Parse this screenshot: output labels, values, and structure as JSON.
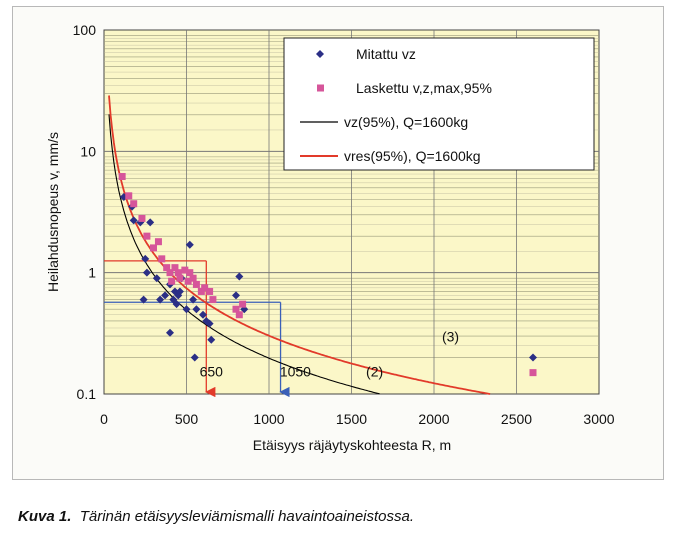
{
  "chart_data": {
    "type": "scatter",
    "ylabel": "Heilahdusnopeus v, mm/s",
    "xlabel": "Etäisyys räjäytyskohteesta R, m",
    "xlim": [
      0,
      3000
    ],
    "ylim": [
      0.1,
      100
    ],
    "y_scale": "log",
    "x_ticks": [
      0,
      500,
      1000,
      1500,
      2000,
      2500,
      3000
    ],
    "y_ticks": [
      0.1,
      1,
      10,
      100
    ],
    "grid": true,
    "legend_position": "top-right",
    "series": [
      {
        "name": "Mitattu vz",
        "kind": "scatter",
        "marker": "diamond",
        "color": "#2b2f86",
        "points": [
          [
            120,
            4.2
          ],
          [
            170,
            3.5
          ],
          [
            180,
            2.7
          ],
          [
            220,
            2.6
          ],
          [
            240,
            0.6
          ],
          [
            250,
            1.3
          ],
          [
            260,
            1.0
          ],
          [
            280,
            2.6
          ],
          [
            320,
            0.9
          ],
          [
            340,
            0.6
          ],
          [
            370,
            0.65
          ],
          [
            400,
            0.8
          ],
          [
            400,
            0.32
          ],
          [
            420,
            0.6
          ],
          [
            430,
            0.7
          ],
          [
            440,
            0.55
          ],
          [
            450,
            0.65
          ],
          [
            460,
            0.7
          ],
          [
            470,
            0.9
          ],
          [
            500,
            0.5
          ],
          [
            520,
            1.7
          ],
          [
            540,
            0.6
          ],
          [
            550,
            0.2
          ],
          [
            560,
            0.5
          ],
          [
            600,
            0.45
          ],
          [
            620,
            0.4
          ],
          [
            640,
            0.38
          ],
          [
            650,
            0.28
          ],
          [
            800,
            0.65
          ],
          [
            820,
            0.93
          ],
          [
            850,
            0.5
          ],
          [
            2600,
            0.2
          ]
        ]
      },
      {
        "name": "Laskettu v,z,max,95%",
        "kind": "scatter",
        "marker": "square",
        "color": "#d6559a",
        "points": [
          [
            110,
            6.2
          ],
          [
            150,
            4.3
          ],
          [
            180,
            3.7
          ],
          [
            230,
            2.8
          ],
          [
            260,
            2.0
          ],
          [
            300,
            1.6
          ],
          [
            330,
            1.8
          ],
          [
            350,
            1.3
          ],
          [
            380,
            1.1
          ],
          [
            400,
            1.0
          ],
          [
            410,
            0.85
          ],
          [
            430,
            1.1
          ],
          [
            450,
            1.0
          ],
          [
            460,
            0.9
          ],
          [
            490,
            1.05
          ],
          [
            510,
            0.85
          ],
          [
            520,
            1.0
          ],
          [
            540,
            0.9
          ],
          [
            560,
            0.8
          ],
          [
            590,
            0.7
          ],
          [
            610,
            0.75
          ],
          [
            640,
            0.7
          ],
          [
            660,
            0.6
          ],
          [
            800,
            0.5
          ],
          [
            820,
            0.45
          ],
          [
            840,
            0.55
          ],
          [
            2600,
            0.15
          ]
        ]
      },
      {
        "name": "vz(95%), Q=1600kg",
        "kind": "line",
        "color": "#000000",
        "curve": {
          "a": 1800,
          "b": 1.32
        }
      },
      {
        "name": "vres(95%), Q=1600kg",
        "kind": "line",
        "color": "#e23a2a",
        "curve": {
          "a": 2400,
          "b": 1.3
        }
      }
    ],
    "annotations": [
      {
        "text": "650",
        "x": 650,
        "y": 0.14
      },
      {
        "text": "1050",
        "x": 1160,
        "y": 0.14
      },
      {
        "text": "(2)",
        "x": 1640,
        "y": 0.14
      },
      {
        "text": "(3)",
        "x": 2100,
        "y": 0.27
      }
    ],
    "reference_lines": [
      {
        "color": "#e23a2a",
        "from": [
          0,
          1.25
        ],
        "to": [
          620,
          1.25
        ]
      },
      {
        "color": "#e23a2a",
        "from": [
          620,
          1.25
        ],
        "to": [
          620,
          0.1
        ],
        "arrow": true
      },
      {
        "color": "#3a5fb8",
        "from": [
          0,
          0.57
        ],
        "to": [
          1070,
          0.57
        ]
      },
      {
        "color": "#3a5fb8",
        "from": [
          1070,
          0.57
        ],
        "to": [
          1070,
          0.1
        ],
        "arrow": true
      }
    ]
  },
  "caption": {
    "label": "Kuva 1.",
    "text": "Tärinän etäisyysleviämismalli havaintoaineistossa."
  }
}
